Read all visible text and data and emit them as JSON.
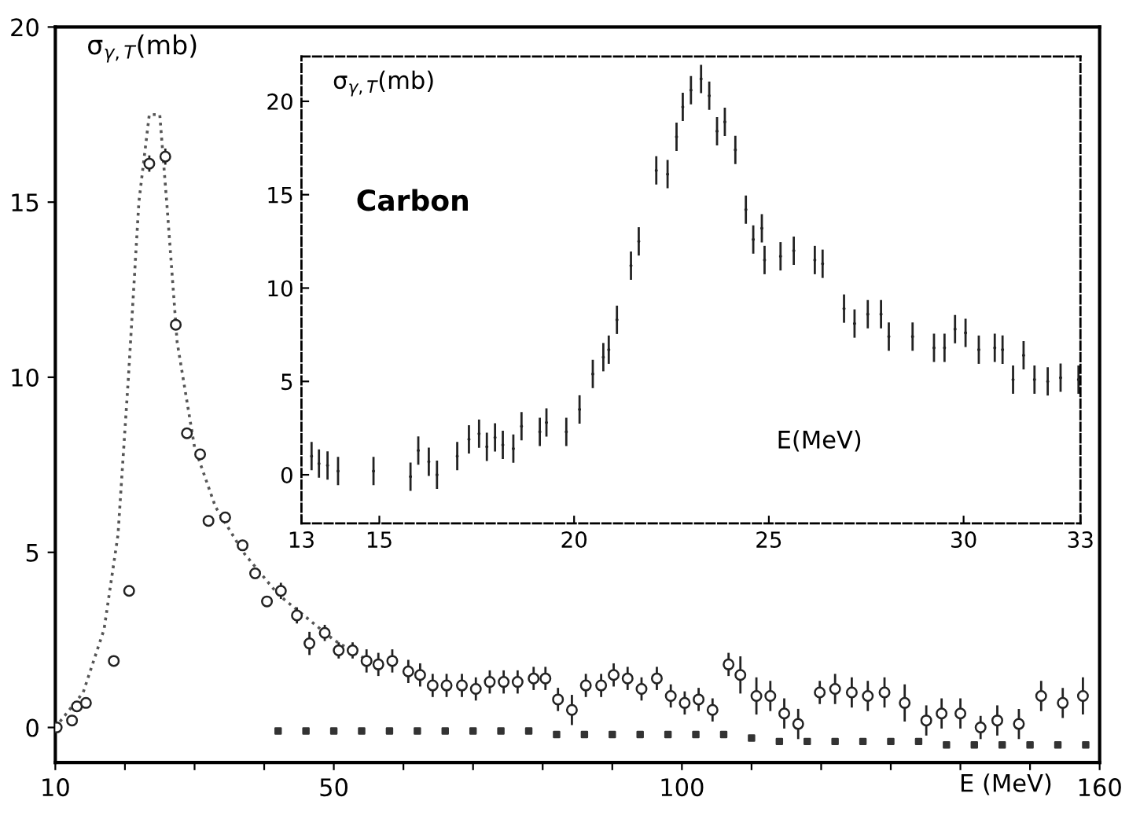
{
  "chart_data": [
    {
      "type": "scatter",
      "ylabel": "σ$_{γ,T}$(mb)",
      "xlabel": "E (MeV)",
      "xlim": [
        10,
        160
      ],
      "ylim": [
        -1,
        20
      ],
      "xticks": [
        10,
        {
          "value": 20,
          "label": null
        },
        {
          "value": 30,
          "label": null
        },
        {
          "value": 40,
          "label": null
        },
        50,
        {
          "value": 60,
          "label": null
        },
        {
          "value": 70,
          "label": null
        },
        {
          "value": 80,
          "label": null
        },
        {
          "value": 90,
          "label": null
        },
        100,
        {
          "value": 110,
          "label": null
        },
        {
          "value": 120,
          "label": null
        },
        {
          "value": 130,
          "label": null
        },
        {
          "value": 140,
          "label": null
        },
        {
          "value": 150,
          "label": null
        },
        160
      ],
      "yticks": [
        0,
        5,
        10,
        15,
        20
      ],
      "grid": false,
      "legend": false,
      "series": [
        {
          "type": "line",
          "line_style": "dotted",
          "marker": "none",
          "color": "#555555",
          "x": [
            10,
            14,
            17,
            19,
            20.5,
            22,
            23.5,
            25,
            26,
            27.5,
            30,
            33,
            37,
            42,
            50,
            55
          ],
          "values": [
            0,
            1,
            2.8,
            5.5,
            10,
            15,
            17.5,
            17.5,
            15,
            11,
            8,
            6.3,
            5,
            3.8,
            2.5,
            1.9
          ]
        },
        {
          "type": "scatter",
          "marker": "circle",
          "color": "#222222",
          "x": [
            10.2,
            12.4,
            13.1,
            14.4,
            18.4,
            20.6,
            23.5,
            25.8,
            27.3,
            28.9,
            30.8,
            32.0,
            34.4,
            36.9,
            38.7,
            40.4,
            42.4,
            44.7,
            46.5,
            48.7,
            50.7,
            52.7,
            54.7,
            56.4,
            58.4,
            60.7,
            62.4,
            64.2,
            66.2,
            68.4,
            70.4,
            72.4,
            74.4,
            76.4,
            78.7,
            80.4,
            82.2,
            84.2,
            86.2,
            88.4,
            90.2,
            92.2,
            94.2,
            96.4,
            98.4,
            100.4,
            102.4,
            104.4,
            106.7,
            108.4,
            110.7,
            112.7,
            114.7,
            116.7,
            119.8,
            122.0,
            124.4,
            126.7,
            129.1,
            132.0,
            135.1,
            137.3,
            140.0,
            142.9,
            145.3,
            148.4,
            151.6,
            154.7,
            157.6
          ],
          "values": [
            0,
            0.2,
            0.6,
            0.7,
            1.9,
            3.9,
            16.1,
            16.3,
            11.5,
            8.4,
            7.8,
            5.9,
            6.0,
            5.2,
            4.4,
            3.6,
            3.9,
            3.2,
            2.4,
            2.7,
            2.2,
            2.2,
            1.9,
            1.8,
            1.9,
            1.6,
            1.5,
            1.2,
            1.2,
            1.2,
            1.1,
            1.3,
            1.3,
            1.3,
            1.4,
            1.4,
            0.8,
            0.5,
            1.2,
            1.2,
            1.5,
            1.4,
            1.1,
            1.4,
            0.9,
            0.7,
            0.8,
            0.5,
            1.8,
            1.5,
            0.9,
            0.9,
            0.4,
            0.1,
            1.0,
            1.1,
            1.0,
            0.9,
            1.0,
            0.7,
            0.2,
            0.4,
            0.4,
            0.0,
            0.2,
            0.1,
            0.9,
            0.7,
            0.9
          ],
          "errors": [
            null,
            null,
            null,
            null,
            null,
            null,
            0.2,
            0.2,
            null,
            null,
            null,
            null,
            null,
            null,
            null,
            null,
            0.2,
            0.2,
            0.3,
            0.2,
            0.2,
            0.2,
            0.3,
            0.3,
            0.3,
            0.3,
            0.3,
            0.3,
            0.3,
            0.3,
            0.3,
            0.3,
            0.3,
            0.3,
            0.3,
            0.3,
            0.3,
            0.4,
            0.3,
            0.3,
            0.3,
            0.3,
            0.3,
            0.3,
            0.3,
            0.3,
            0.3,
            0.3,
            0.3,
            0.5,
            0.5,
            0.4,
            0.4,
            0.4,
            0.3,
            0.4,
            0.4,
            0.4,
            0.4,
            0.5,
            0.4,
            0.4,
            0.4,
            0.3,
            0.4,
            0.4,
            0.4,
            0.4,
            0.5
          ]
        },
        {
          "type": "scatter",
          "marker": "square",
          "color": "#333333",
          "x": [
            42,
            46,
            50,
            54,
            58,
            62,
            66,
            70,
            74,
            78,
            82,
            86,
            90,
            94,
            98,
            102,
            106,
            110,
            114,
            118,
            122,
            126,
            130,
            134,
            138,
            142,
            146,
            150,
            154,
            158
          ],
          "values": [
            -0.1,
            -0.1,
            -0.1,
            -0.1,
            -0.1,
            -0.1,
            -0.1,
            -0.1,
            -0.1,
            -0.1,
            -0.2,
            -0.2,
            -0.2,
            -0.2,
            -0.2,
            -0.2,
            -0.2,
            -0.3,
            -0.4,
            -0.4,
            -0.4,
            -0.4,
            -0.4,
            -0.4,
            -0.5,
            -0.5,
            -0.5,
            -0.5,
            -0.5,
            -0.5
          ]
        }
      ]
    },
    {
      "type": "scatter",
      "ylabel": "σ$_{γ,T}$(mb)",
      "xlabel": "E(MeV)",
      "xlim": [
        13,
        33
      ],
      "ylim": [
        -2.6,
        22.4
      ],
      "xticks": [
        13,
        15,
        20,
        25,
        30,
        33
      ],
      "yticks": [
        0,
        5,
        10,
        15,
        20
      ],
      "grid": false,
      "legend": false,
      "line_style": "dashed",
      "annotations": [
        {
          "text": "Carbon"
        }
      ],
      "series": [
        {
          "type": "scatter",
          "marker": "none",
          "color": "#222222",
          "x": [
            13.26,
            13.45,
            13.67,
            13.94,
            14.85,
            15.8,
            16.0,
            16.27,
            16.48,
            17.0,
            17.3,
            17.56,
            17.76,
            17.97,
            18.17,
            18.44,
            18.65,
            19.12,
            19.29,
            19.8,
            20.14,
            20.48,
            20.75,
            20.89,
            21.1,
            21.46,
            21.66,
            22.11,
            22.4,
            22.63,
            22.79,
            23.0,
            23.26,
            23.47,
            23.67,
            23.87,
            24.14,
            24.41,
            24.6,
            24.82,
            24.89,
            25.3,
            25.64,
            26.18,
            26.38,
            26.93,
            27.2,
            27.54,
            27.88,
            28.08,
            28.69,
            29.24,
            29.51,
            29.78,
            30.05,
            30.39,
            30.8,
            31.0,
            31.27,
            31.54,
            31.82,
            32.16,
            32.49,
            32.95
          ],
          "values": [
            1.0,
            0.6,
            0.5,
            0.2,
            0.2,
            -0.1,
            1.3,
            0.7,
            0.0,
            1.0,
            1.9,
            2.2,
            1.5,
            2.0,
            1.6,
            1.4,
            2.6,
            2.3,
            2.8,
            2.3,
            3.5,
            5.4,
            6.3,
            6.7,
            8.3,
            11.2,
            12.5,
            16.3,
            16.1,
            18.1,
            19.7,
            20.6,
            21.2,
            20.3,
            18.4,
            18.9,
            17.4,
            14.2,
            12.6,
            13.2,
            11.5,
            11.7,
            12.0,
            11.5,
            11.3,
            8.9,
            8.1,
            8.6,
            8.6,
            7.4,
            7.4,
            6.8,
            6.8,
            7.8,
            7.6,
            6.7,
            6.8,
            6.7,
            5.1,
            6.4,
            5.1,
            5.0,
            5.2,
            5.1
          ],
          "errors": [
            0.7,
            0.7,
            0.7,
            0.7,
            0.7,
            0.7,
            0.7,
            0.7,
            0.7,
            0.7,
            0.7,
            0.7,
            0.7,
            0.7,
            0.7,
            0.7,
            0.7,
            0.7,
            0.7,
            0.7,
            0.7,
            0.7,
            0.7,
            0.7,
            0.7,
            0.7,
            0.7,
            0.7,
            0.7,
            0.7,
            0.7,
            0.7,
            0.7,
            0.7,
            0.7,
            0.7,
            0.7,
            0.7,
            0.7,
            0.7,
            0.7,
            0.7,
            0.7,
            0.7,
            0.7,
            0.7,
            0.7,
            0.7,
            0.7,
            0.7,
            0.7,
            0.7,
            0.7,
            0.7,
            0.7,
            0.7,
            0.7,
            0.7,
            0.7,
            0.7,
            0.7,
            0.7,
            0.7,
            0.7
          ]
        }
      ]
    }
  ]
}
